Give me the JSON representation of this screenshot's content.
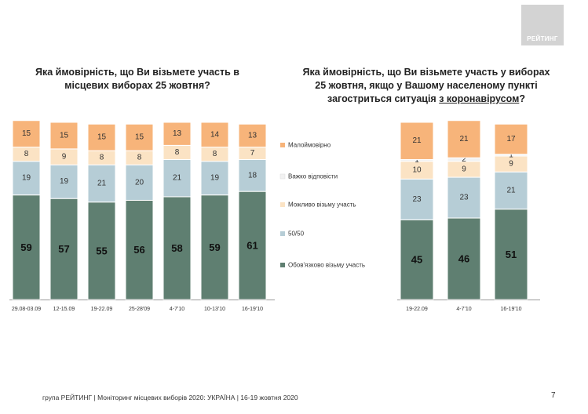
{
  "logo": {
    "text": "РЕЙТИНГ"
  },
  "footer": {
    "text": "група РЕЙТИНГ | Моніторинг місцевих виборів 2020: УКРАЇНА | 16-19 жовтня 2020"
  },
  "page_number": "7",
  "colors": {
    "Малоймовірно": "#f7b47a",
    "Важко відповісти": "#f2f2f2",
    "Можливо візьму участь": "#fbe3c4",
    "50/50": "#b6cdd6",
    "Обов'язково візьму участь": "#5f7f71"
  },
  "legend": [
    {
      "name": "Малоймовірно",
      "color": "#f7b47a"
    },
    {
      "name": "Важко відповісти",
      "color": "#f2f2f2"
    },
    {
      "name": "Можливо візьму участь",
      "color": "#fbe3c4"
    },
    {
      "name": "50/50",
      "color": "#b6cdd6"
    },
    {
      "name": "Обов'язково візьму участь",
      "color": "#5f7f71"
    }
  ],
  "chart_data": [
    {
      "type": "bar",
      "stacked": true,
      "title_line1": "Яка ймовірність, що Ви візьмете участь в",
      "title_line2": "місцевих виборах 25 жовтня?",
      "categories": [
        "29.08-03.09",
        "12-15.09",
        "19-22.09",
        "25-28'09",
        "4-7'10",
        "10-13'10",
        "16-19'10"
      ],
      "series": [
        {
          "name": "Обов'язково візьму участь",
          "values": [
            59,
            57,
            55,
            56,
            58,
            59,
            61
          ],
          "labels": [
            "59",
            "57",
            "55",
            "56",
            "58",
            "59",
            "61"
          ]
        },
        {
          "name": "50/50",
          "values": [
            19,
            19,
            21,
            20,
            21,
            19,
            18
          ],
          "labels": [
            "19",
            "19",
            "21",
            "20",
            "21",
            "19",
            "18"
          ]
        },
        {
          "name": "Можливо візьму участь",
          "values": [
            8,
            9,
            8,
            8,
            8,
            8,
            7
          ],
          "labels": [
            "8",
            "9",
            "8",
            "8",
            "8",
            "8",
            "7"
          ]
        },
        {
          "name": "Малоймовірно",
          "values": [
            15,
            15,
            15,
            15,
            13,
            14,
            13
          ],
          "labels": [
            "15",
            "15",
            "15",
            "15",
            "13",
            "14",
            "13"
          ]
        }
      ],
      "ylim": [
        0,
        100
      ]
    },
    {
      "type": "bar",
      "stacked": true,
      "title_line1": "Яка ймовірність, що Ви візьмете участь у виборах",
      "title_line2": "25 жовтня, якщо у Вашому населеному пункті",
      "title_line3_prefix": "загостриться ситуація ",
      "title_line3_underlined": "з коронавірусом",
      "title_line3_suffix": "?",
      "categories": [
        "19-22.09",
        "4-7'10",
        "16-19'10"
      ],
      "series": [
        {
          "name": "Обов'язково візьму участь",
          "values": [
            45,
            46,
            51
          ],
          "labels": [
            "45",
            "46",
            "51"
          ]
        },
        {
          "name": "50/50",
          "values": [
            23,
            23,
            21
          ],
          "labels": [
            "23",
            "23",
            "21"
          ]
        },
        {
          "name": "Можливо візьму участь",
          "values": [
            10,
            9,
            9
          ],
          "labels": [
            "10",
            "9",
            "9"
          ]
        },
        {
          "name": "Важко відповісти",
          "values": [
            1,
            2,
            1
          ],
          "labels": [
            "1",
            "2",
            "1"
          ]
        },
        {
          "name": "Малоймовірно",
          "values": [
            21,
            21,
            17
          ],
          "labels": [
            "21",
            "21",
            "17"
          ]
        }
      ],
      "ylim": [
        0,
        100
      ]
    }
  ]
}
